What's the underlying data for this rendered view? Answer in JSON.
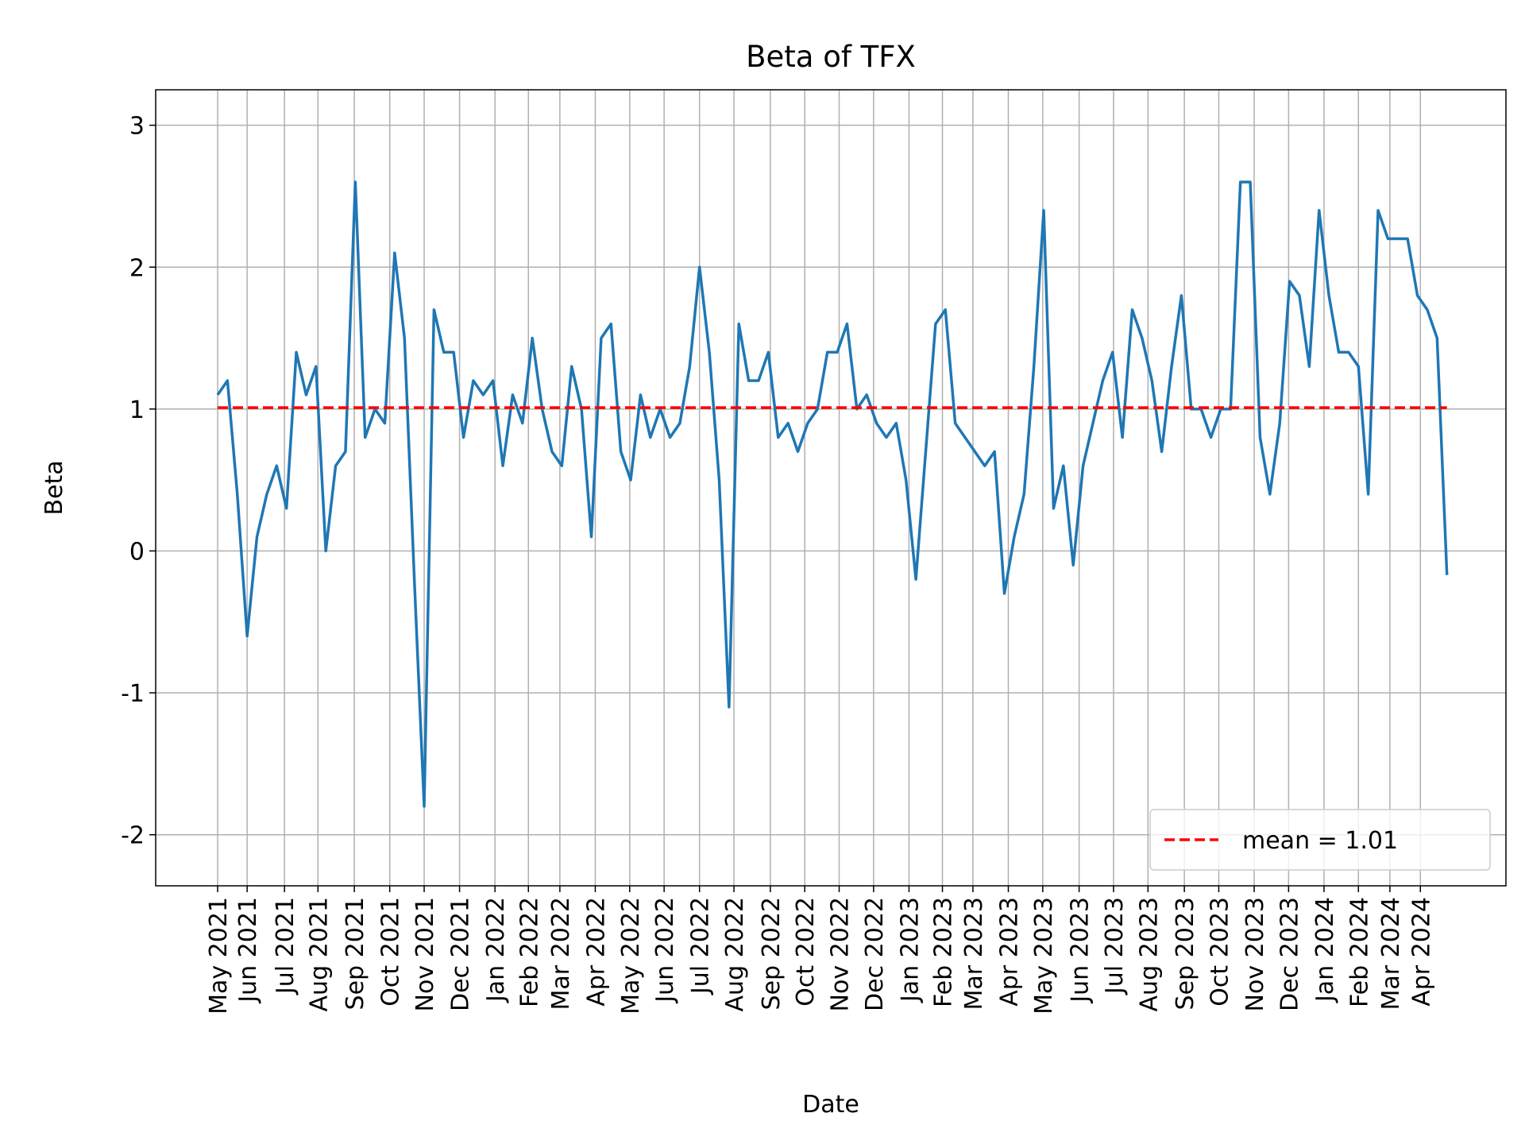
{
  "chart_data": {
    "type": "line",
    "title": "Beta of TFX",
    "xlabel": "Date",
    "ylabel": "Beta",
    "series": [
      {
        "color": "#1f77b4",
        "values": [
          1.1,
          1.2,
          0.4,
          -0.6,
          0.1,
          0.4,
          0.6,
          0.3,
          1.4,
          1.1,
          1.3,
          0.0,
          0.6,
          0.7,
          2.6,
          0.8,
          1.0,
          0.9,
          2.1,
          1.5,
          -0.2,
          -1.8,
          1.7,
          1.4,
          1.4,
          0.8,
          1.2,
          1.1,
          1.2,
          0.6,
          1.1,
          0.9,
          1.5,
          1.0,
          0.7,
          0.6,
          1.3,
          1.0,
          0.1,
          1.5,
          1.6,
          0.7,
          0.5,
          1.1,
          0.8,
          1.0,
          0.8,
          0.9,
          1.3,
          2.0,
          1.4,
          0.5,
          -1.1,
          1.6,
          1.2,
          1.2,
          1.4,
          0.8,
          0.9,
          0.7,
          0.9,
          1.0,
          1.4,
          1.4,
          1.6,
          1.0,
          1.1,
          0.9,
          0.8,
          0.9,
          0.5,
          -0.2,
          0.7,
          1.6,
          1.7,
          0.9,
          0.8,
          0.7,
          0.6,
          0.7,
          -0.3,
          0.1,
          0.4,
          1.3,
          2.4,
          0.3,
          0.6,
          -0.1,
          0.6,
          0.9,
          1.2,
          1.4,
          0.8,
          1.7,
          1.5,
          1.2,
          0.7,
          1.3,
          1.8,
          1.0,
          1.0,
          0.8,
          1.0,
          1.0,
          2.6,
          2.6,
          0.8,
          0.4,
          0.9,
          1.9,
          1.8,
          1.3,
          2.4,
          1.8,
          1.4,
          1.4,
          1.3,
          0.4,
          2.4,
          2.2,
          2.2,
          2.2,
          1.8,
          1.7,
          1.5,
          -0.17
        ]
      }
    ],
    "mean": {
      "label": "mean = 1.01",
      "value": 1.01,
      "color": "#ff0000"
    },
    "legend": "lower right",
    "grid": true,
    "xlim": [
      -6.3,
      131
    ],
    "xticks": [
      {
        "value": 0,
        "label": "May 2021"
      },
      {
        "value": 3,
        "label": "Jun 2021"
      },
      {
        "value": 6.8,
        "label": "Jul 2021"
      },
      {
        "value": 10.2,
        "label": "Aug 2021"
      },
      {
        "value": 13.9,
        "label": "Sep 2021"
      },
      {
        "value": 17.5,
        "label": "Oct 2021"
      },
      {
        "value": 21,
        "label": "Nov 2021"
      },
      {
        "value": 24.6,
        "label": "Dec 2021"
      },
      {
        "value": 28.2,
        "label": "Jan 2022"
      },
      {
        "value": 31.6,
        "label": "Feb 2022"
      },
      {
        "value": 34.8,
        "label": "Mar 2022"
      },
      {
        "value": 38.4,
        "label": "Apr 2022"
      },
      {
        "value": 41.9,
        "label": "May 2022"
      },
      {
        "value": 45.4,
        "label": "Jun 2022"
      },
      {
        "value": 49,
        "label": "Jul 2022"
      },
      {
        "value": 52.5,
        "label": "Aug 2022"
      },
      {
        "value": 56.2,
        "label": "Sep 2022"
      },
      {
        "value": 59.7,
        "label": "Oct 2022"
      },
      {
        "value": 63.2,
        "label": "Nov 2022"
      },
      {
        "value": 66.7,
        "label": "Dec 2022"
      },
      {
        "value": 70.3,
        "label": "Jan 2023"
      },
      {
        "value": 73.7,
        "label": "Feb 2023"
      },
      {
        "value": 76.8,
        "label": "Mar 2023"
      },
      {
        "value": 80.4,
        "label": "Apr 2023"
      },
      {
        "value": 83.9,
        "label": "May 2023"
      },
      {
        "value": 87.6,
        "label": "Jun 2023"
      },
      {
        "value": 91.1,
        "label": "Jul 2023"
      },
      {
        "value": 94.6,
        "label": "Aug 2023"
      },
      {
        "value": 98.3,
        "label": "Sep 2023"
      },
      {
        "value": 101.8,
        "label": "Oct 2023"
      },
      {
        "value": 105.4,
        "label": "Nov 2023"
      },
      {
        "value": 108.9,
        "label": "Dec 2023"
      },
      {
        "value": 112.5,
        "label": "Jan 2024"
      },
      {
        "value": 116,
        "label": "Feb 2024"
      },
      {
        "value": 119.2,
        "label": "Mar 2024"
      },
      {
        "value": 122.3,
        "label": "Apr 2024"
      }
    ],
    "ylim": [
      -2.36,
      3.25
    ],
    "yticks": [
      -2,
      -1,
      0,
      1,
      2,
      3
    ]
  }
}
